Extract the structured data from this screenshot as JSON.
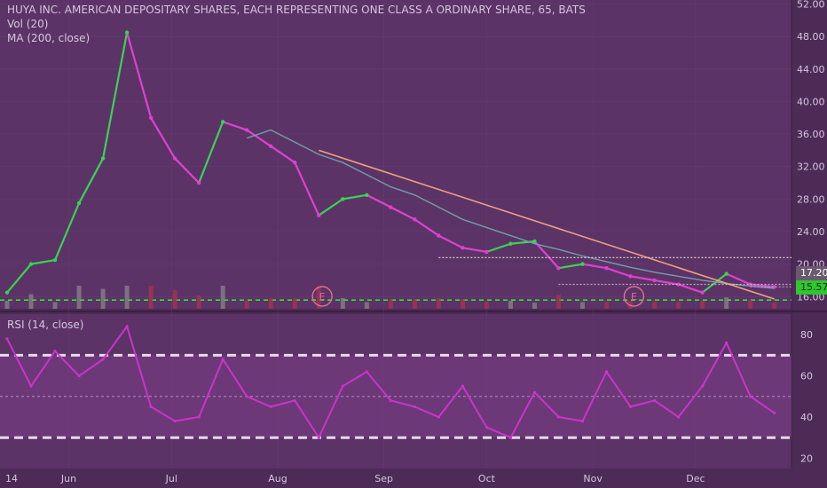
{
  "header": {
    "symbol_line": "HUYA INC. AMERICAN DEPOSITARY SHARES, EACH REPRESENTING ONE CLASS A ORDINARY SHARE, 65, BATS",
    "indicator_vol": "Vol (20)",
    "indicator_ma": "MA (200, close)",
    "rsi_label": "RSI (14, close)"
  },
  "colors": {
    "background": "#4c2b57",
    "price_pane": "#5b3366",
    "rsi_band": "#7a3d86",
    "up": "#39d353",
    "down": "#e040d0",
    "ma_line": "#6fa0a6",
    "trendline": "#f0a080",
    "support": "#2ee62e",
    "resistance_dots": "#e8d8d8",
    "rsi_line": "#cc33cc",
    "earnings_marker": "#e07090",
    "volume_up": "#8c8c8c",
    "volume_down": "#b03050"
  },
  "price_badges": {
    "last": "17.20",
    "support": "15.57"
  },
  "earnings": [
    {
      "label": "E",
      "date": "2018-08-14"
    },
    {
      "label": "E",
      "date": "2018-11-13"
    }
  ],
  "chart_data": [
    {
      "type": "line",
      "title": "HUYA INC. AMERICAN DEPOSITARY SHARES, EACH REPRESENTING ONE CLASS A ORDINARY SHARE, 65, BATS",
      "x_ticks": [
        "14",
        "Jun",
        "Jul",
        "Aug",
        "Sep",
        "Oct",
        "Nov",
        "Dec"
      ],
      "y_ticks": [
        52,
        48,
        44,
        40,
        36,
        32,
        28,
        24,
        20,
        16
      ],
      "ylim": [
        14.5,
        52.5
      ],
      "x": [
        "2018-05-14",
        "2018-05-21",
        "2018-05-28",
        "2018-06-04",
        "2018-06-11",
        "2018-06-18",
        "2018-06-25",
        "2018-07-02",
        "2018-07-09",
        "2018-07-16",
        "2018-07-23",
        "2018-07-30",
        "2018-08-06",
        "2018-08-13",
        "2018-08-20",
        "2018-08-27",
        "2018-09-03",
        "2018-09-10",
        "2018-09-17",
        "2018-09-24",
        "2018-10-01",
        "2018-10-08",
        "2018-10-15",
        "2018-10-22",
        "2018-10-29",
        "2018-11-05",
        "2018-11-12",
        "2018-11-19",
        "2018-11-26",
        "2018-12-03",
        "2018-12-10",
        "2018-12-17",
        "2018-12-24"
      ],
      "series": [
        {
          "name": "close",
          "values": [
            16.5,
            20.0,
            20.5,
            27.5,
            33.0,
            48.5,
            38.0,
            33.0,
            30.0,
            37.5,
            36.5,
            34.5,
            32.5,
            26.0,
            28.0,
            28.5,
            27.0,
            25.5,
            23.5,
            22.0,
            21.5,
            22.5,
            22.8,
            19.5,
            20.0,
            19.5,
            18.5,
            18.0,
            17.5,
            16.5,
            18.8,
            17.5,
            17.2
          ]
        },
        {
          "name": "MA (200, close)",
          "values": [
            null,
            null,
            null,
            null,
            null,
            null,
            null,
            null,
            null,
            null,
            35.5,
            36.5,
            35.0,
            33.5,
            32.5,
            31.0,
            29.5,
            28.5,
            27.0,
            25.5,
            24.5,
            23.5,
            22.5,
            21.8,
            21.0,
            20.3,
            19.6,
            19.0,
            18.5,
            18.0,
            17.6,
            17.3,
            17.0
          ]
        }
      ],
      "annotations": {
        "support": 15.57,
        "last": 17.2,
        "resistance_upper": 20.8,
        "resistance_lower": 17.5,
        "trendline": [
          {
            "x": "2018-08-13",
            "y": 34.0
          },
          {
            "x": "2018-12-24",
            "y": 15.7
          }
        ]
      },
      "grid": true,
      "legend": "top-left"
    },
    {
      "type": "line",
      "title": "RSI (14, close)",
      "y_ticks": [
        80,
        60,
        40,
        20
      ],
      "ylim": [
        15,
        90
      ],
      "bands": [
        30,
        70
      ],
      "x": [
        "2018-05-14",
        "2018-05-21",
        "2018-05-28",
        "2018-06-04",
        "2018-06-11",
        "2018-06-18",
        "2018-06-25",
        "2018-07-02",
        "2018-07-09",
        "2018-07-16",
        "2018-07-23",
        "2018-07-30",
        "2018-08-06",
        "2018-08-13",
        "2018-08-20",
        "2018-08-27",
        "2018-09-03",
        "2018-09-10",
        "2018-09-17",
        "2018-09-24",
        "2018-10-01",
        "2018-10-08",
        "2018-10-15",
        "2018-10-22",
        "2018-10-29",
        "2018-11-05",
        "2018-11-12",
        "2018-11-19",
        "2018-11-26",
        "2018-12-03",
        "2018-12-10",
        "2018-12-17",
        "2018-12-24"
      ],
      "series": [
        {
          "name": "RSI (14, close)",
          "values": [
            78,
            55,
            72,
            60,
            68,
            84,
            45,
            38,
            40,
            68,
            50,
            45,
            48,
            30,
            55,
            62,
            48,
            45,
            40,
            55,
            35,
            30,
            52,
            40,
            38,
            62,
            45,
            48,
            40,
            55,
            76,
            50,
            42
          ]
        }
      ],
      "grid": true,
      "legend": "top-left"
    }
  ]
}
